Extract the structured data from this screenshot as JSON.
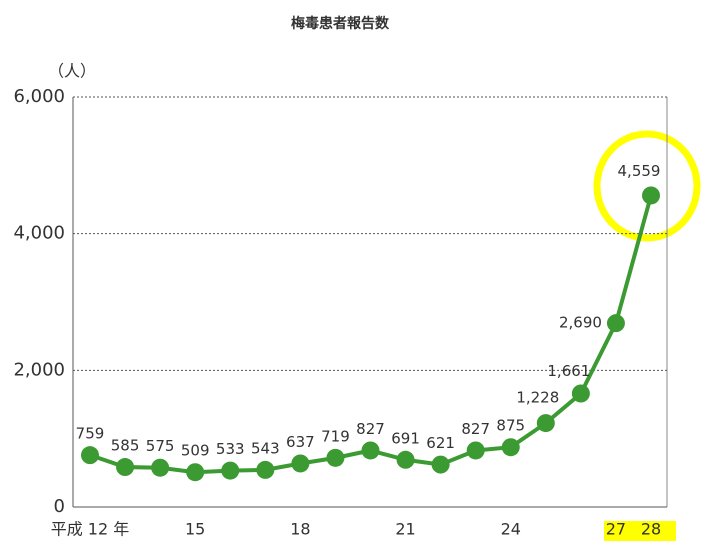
{
  "chart_data": {
    "type": "line",
    "title": "梅毒患者報告数",
    "y_unit": "（人）",
    "categories": [
      "平成 12 年",
      null,
      null,
      "15",
      null,
      null,
      "18",
      null,
      null,
      "21",
      null,
      null,
      "24",
      null,
      null,
      "27",
      "28"
    ],
    "series": [
      {
        "name": "梅毒患者報告数",
        "color": "#3c9a32",
        "values": [
          759,
          585,
          575,
          509,
          533,
          543,
          637,
          719,
          827,
          691,
          621,
          827,
          875,
          1228,
          1661,
          2690,
          4559
        ],
        "value_labels": [
          "759",
          "585",
          "575",
          "509",
          "533",
          "543",
          "637",
          "719",
          "827",
          "691",
          "621",
          "827",
          "875",
          "1,228",
          "1,661",
          "2,690",
          "4,559"
        ]
      }
    ],
    "ylim": [
      0,
      6000
    ],
    "yticks": [
      0,
      {
        "value": 2000,
        "label": "2,000"
      },
      {
        "value": 4000,
        "label": "4,000"
      },
      {
        "value": 6000,
        "label": "6,000"
      }
    ],
    "grid": true
  }
}
